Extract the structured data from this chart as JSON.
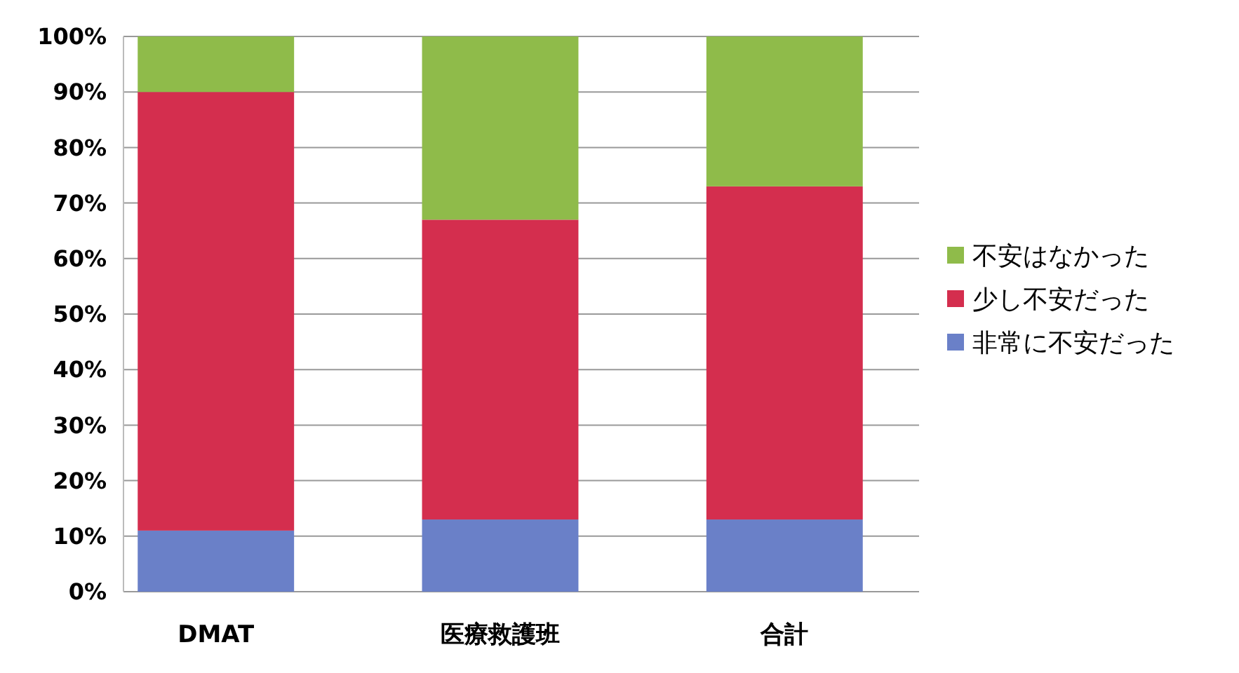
{
  "chart_data": {
    "type": "bar",
    "stacked": true,
    "categories": [
      "DMAT",
      "医療救護班",
      "合計"
    ],
    "series": [
      {
        "name": "非常に不安だった",
        "color": "#6a80c8",
        "values": [
          11,
          13,
          13
        ]
      },
      {
        "name": "少し不安だった",
        "color": "#d42e4e",
        "values": [
          79,
          54,
          60
        ]
      },
      {
        "name": "不安はなかった",
        "color": "#8fbb4a",
        "values": [
          10,
          33,
          27
        ]
      }
    ],
    "ylim": [
      0,
      100
    ],
    "yticks": [
      {
        "value": 0,
        "label": "0%"
      },
      {
        "value": 10,
        "label": "10%"
      },
      {
        "value": 20,
        "label": "20%"
      },
      {
        "value": 30,
        "label": "30%"
      },
      {
        "value": 40,
        "label": "40%"
      },
      {
        "value": 50,
        "label": "50%"
      },
      {
        "value": 60,
        "label": "60%"
      },
      {
        "value": 70,
        "label": "70%"
      },
      {
        "value": 80,
        "label": "80%"
      },
      {
        "value": 90,
        "label": "90%"
      },
      {
        "value": 100,
        "label": "100%"
      }
    ],
    "grid": "y",
    "legend": "right"
  }
}
